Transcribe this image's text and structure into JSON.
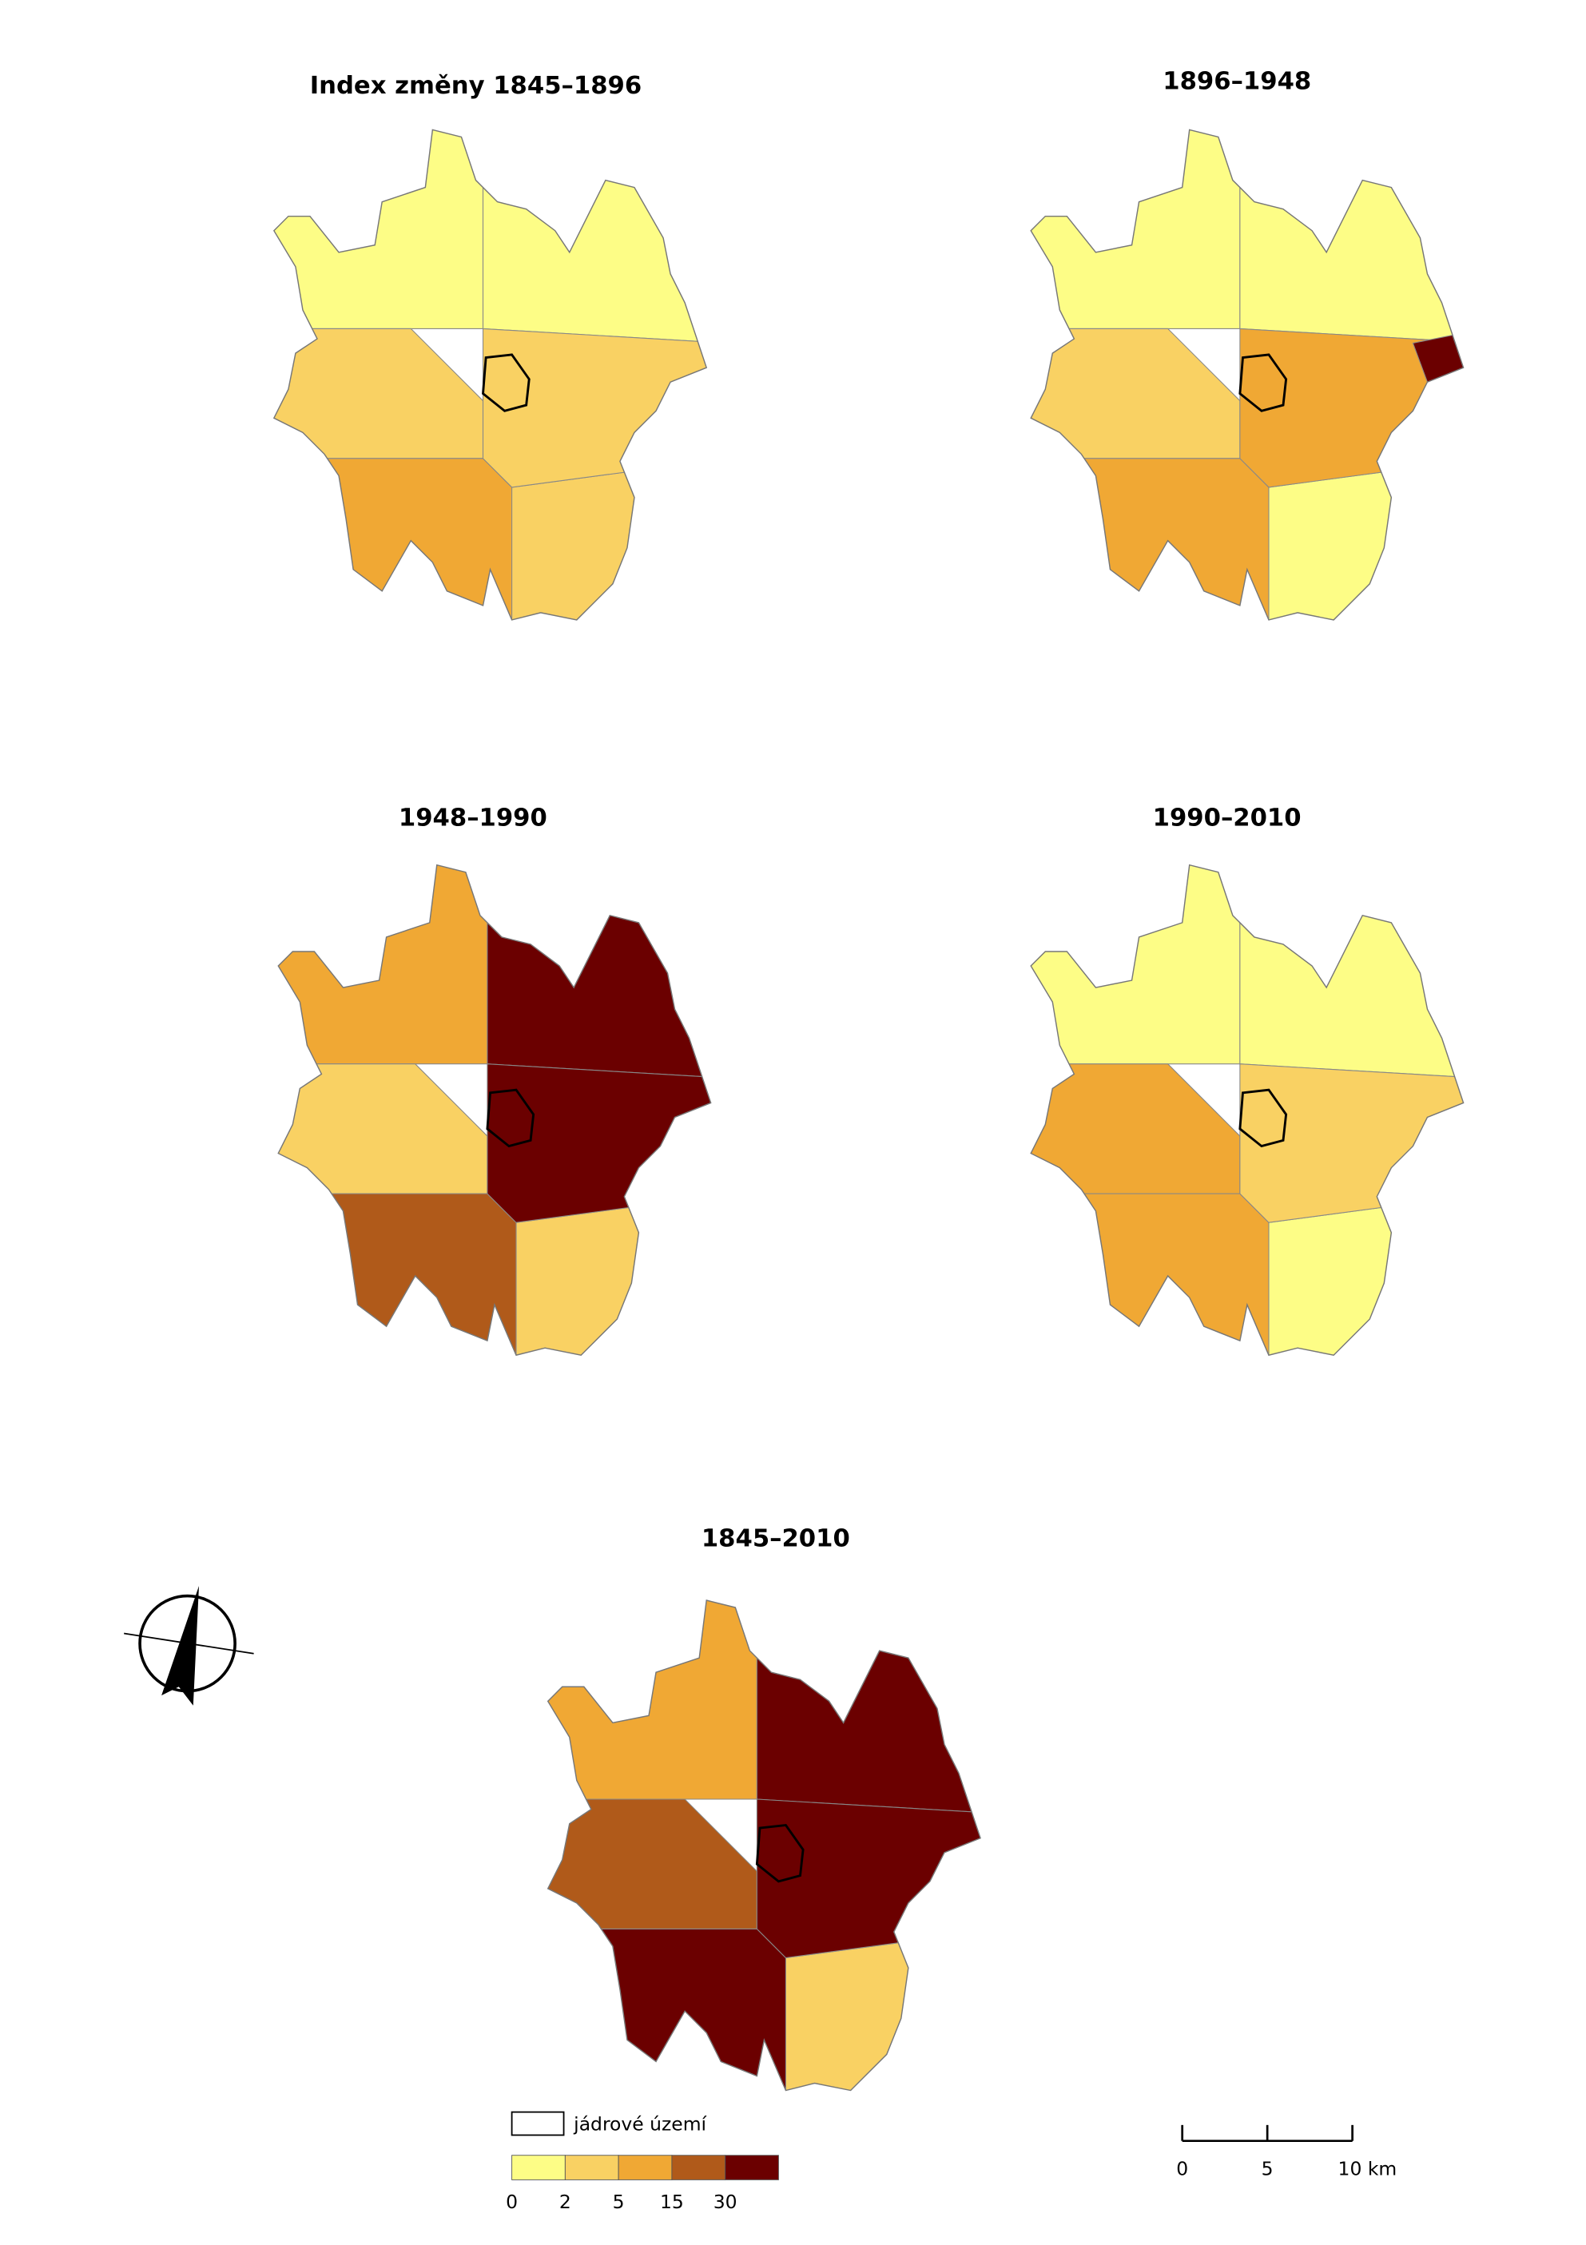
{
  "maps": [
    {
      "title": "Index změny 1845–1896"
    },
    {
      "title": "1896–1948"
    },
    {
      "title": "1948–1990"
    },
    {
      "title": "1990–2010"
    },
    {
      "title": "1845–2010"
    }
  ],
  "legend": {
    "core_label": "jádrové území",
    "breaks": [
      0,
      2,
      5,
      15,
      30
    ],
    "colors": [
      "#fdfd86",
      "#f9d163",
      "#f0a834",
      "#b05a1a",
      "#6b0000"
    ]
  },
  "scale_bar": {
    "ticks": [
      0,
      5,
      {
        "value": 10,
        "label": "10 km"
      }
    ]
  }
}
